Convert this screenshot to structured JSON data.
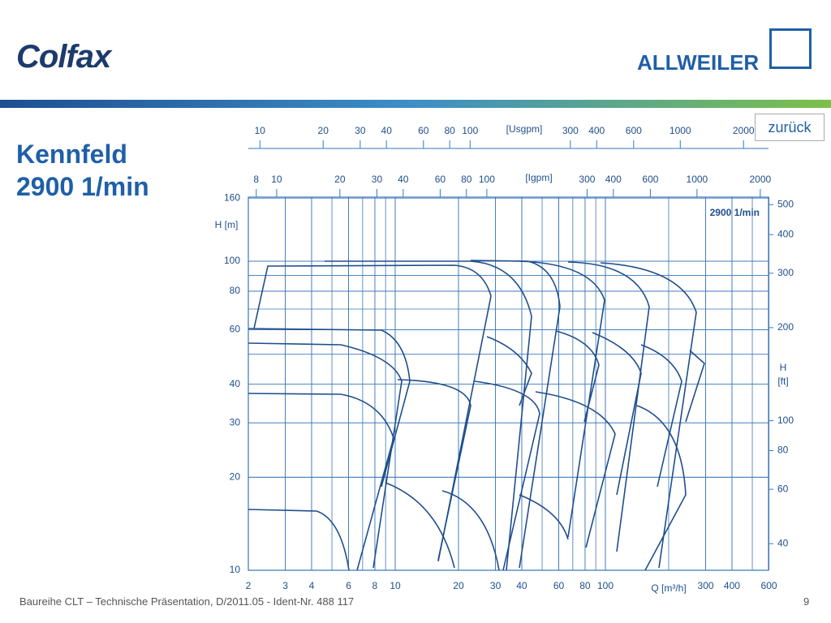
{
  "header": {
    "logo_left": "Colfax",
    "logo_right": "ALLWEILER"
  },
  "title": {
    "line1": "Kennfeld",
    "line2": "2900 1/min"
  },
  "button": "zurück",
  "chart": {
    "label": "2900 1/min",
    "usgpm_label": "[Usgpm]",
    "usgpm_ticks": [
      10,
      20,
      30,
      40,
      60,
      80,
      100,
      300,
      400,
      600,
      1000,
      2000
    ],
    "igpm_label": "[Igpm]",
    "igpm_ticks": [
      8,
      10,
      20,
      30,
      40,
      60,
      80,
      100,
      300,
      400,
      600,
      1000,
      2000
    ],
    "q_label": "Q [m³/h]",
    "q_ticks": [
      2,
      3,
      4,
      6,
      8,
      10,
      20,
      30,
      40,
      60,
      80,
      100,
      300,
      400,
      600
    ],
    "h_m_label": "H [m]",
    "h_m_ticks": [
      10,
      20,
      30,
      40,
      60,
      80,
      100,
      160
    ],
    "h_ft_label": "H",
    "h_ft_unit": "[ft]",
    "h_ft_ticks": [
      40,
      60,
      80,
      100,
      200,
      300,
      400,
      500
    ]
  },
  "footer": {
    "text": "Baureihe CLT – Technische Präsentation, D/2011.05 - Ident-Nr. 488 117",
    "page": "9"
  }
}
